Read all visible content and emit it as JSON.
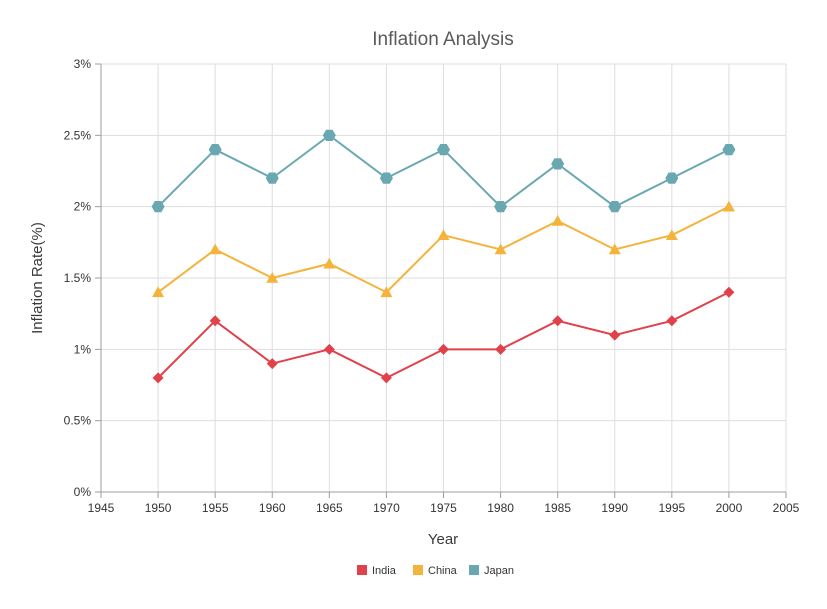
{
  "chart_data": {
    "type": "line",
    "title": "Inflation Analysis",
    "xlabel": "Year",
    "ylabel": "Inflation Rate(%)",
    "xlim": [
      1945,
      2005
    ],
    "ylim": [
      0,
      3
    ],
    "x_ticks": [
      1945,
      1950,
      1955,
      1960,
      1965,
      1970,
      1975,
      1980,
      1985,
      1990,
      1995,
      2000,
      2005
    ],
    "y_ticks": [
      0,
      0.5,
      1,
      1.5,
      2,
      2.5,
      3
    ],
    "y_tick_labels": [
      "0%",
      "0.5%",
      "1%",
      "1.5%",
      "2%",
      "2.5%",
      "3%"
    ],
    "grid": true,
    "legend_position": "bottom-center",
    "x": [
      1950,
      1955,
      1960,
      1965,
      1970,
      1975,
      1980,
      1985,
      1990,
      1995,
      2000
    ],
    "series": [
      {
        "name": "India",
        "color": "#e0414a",
        "marker": "diamond",
        "values": [
          0.8,
          1.2,
          0.9,
          1.0,
          0.8,
          1.0,
          1.0,
          1.2,
          1.1,
          1.2,
          1.4
        ]
      },
      {
        "name": "China",
        "color": "#f4b33b",
        "marker": "triangle",
        "values": [
          1.4,
          1.7,
          1.5,
          1.6,
          1.4,
          1.8,
          1.7,
          1.9,
          1.7,
          1.8,
          2.0
        ]
      },
      {
        "name": "Japan",
        "color": "#6aa8b1",
        "marker": "hexagon",
        "values": [
          2.0,
          2.4,
          2.2,
          2.5,
          2.2,
          2.4,
          2.0,
          2.3,
          2.0,
          2.2,
          2.4
        ]
      }
    ]
  }
}
